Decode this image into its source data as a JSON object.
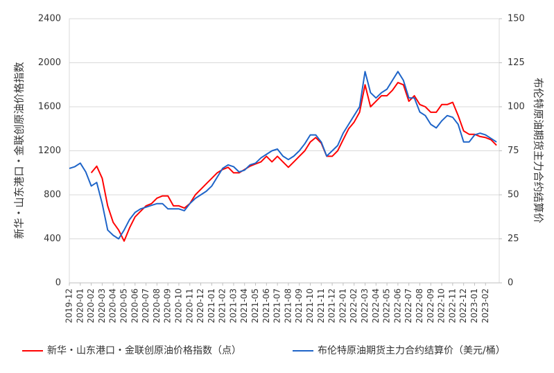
{
  "chart_data": {
    "type": "line",
    "y_label": "新华・山东港口・金联创原油价格指数",
    "y2_label": "布伦特原油期货主力合约结算价",
    "categories": [
      "2019-12",
      null,
      "2020-01",
      null,
      "2020-02",
      null,
      "2020-03",
      null,
      "2020-04",
      null,
      "2020-05",
      null,
      "2020-06",
      null,
      "2020-07",
      null,
      "2020-08",
      null,
      "2020-09",
      null,
      "2020-10",
      null,
      "2020-11",
      null,
      "2020-12",
      null,
      "2021-01",
      null,
      "2021-02",
      null,
      "2021-03",
      null,
      "2021-04",
      null,
      "2021-05",
      null,
      "2021-06",
      null,
      "2021-07",
      null,
      "2021-08",
      null,
      "2021-09",
      null,
      "2021-10",
      null,
      "2021-11",
      null,
      "2021-12",
      null,
      "2022-01",
      null,
      "2022-02",
      null,
      "2022-03",
      null,
      "2022-04",
      null,
      "2022-05",
      null,
      "2022-06",
      null,
      "2022-07",
      null,
      "2022-08",
      null,
      "2022-09",
      null,
      "2022-10",
      null,
      "2022-11",
      null,
      "2022-12",
      null,
      "2023-01",
      null,
      "2023-02",
      null,
      null
    ],
    "series": [
      {
        "name": "新华・山东港口・金联创原油价格指数（点）",
        "color": "#ff0000",
        "axis": "y",
        "values": [
          null,
          null,
          null,
          null,
          1000,
          1060,
          950,
          700,
          550,
          480,
          380,
          500,
          600,
          650,
          700,
          720,
          770,
          790,
          790,
          700,
          700,
          680,
          720,
          800,
          850,
          900,
          950,
          1000,
          1030,
          1050,
          1000,
          1000,
          1030,
          1060,
          1080,
          1100,
          1150,
          1100,
          1150,
          1100,
          1050,
          1100,
          1150,
          1200,
          1280,
          1320,
          1270,
          1150,
          1150,
          1200,
          1300,
          1400,
          1460,
          1550,
          1800,
          1600,
          1650,
          1700,
          1700,
          1750,
          1820,
          1800,
          1650,
          1700,
          1620,
          1600,
          1550,
          1550,
          1620,
          1620,
          1640,
          1520,
          1380,
          1350,
          1350,
          1330,
          1320,
          1300,
          1250
        ]
      },
      {
        "name": "布伦特原油期货主力合约结算价（美元/桶）",
        "color": "#1e64c8",
        "axis": "y2",
        "values": [
          65,
          66,
          68,
          63,
          55,
          57,
          45,
          30,
          27,
          25,
          30,
          36,
          40,
          42,
          43,
          44,
          45,
          45,
          42,
          42,
          42,
          41,
          45,
          48,
          50,
          52,
          55,
          60,
          65,
          67,
          66,
          63,
          64,
          67,
          68,
          71,
          73,
          75,
          76,
          72,
          70,
          72,
          75,
          79,
          84,
          84,
          80,
          72,
          75,
          78,
          85,
          90,
          95,
          100,
          120,
          108,
          105,
          108,
          110,
          115,
          120,
          115,
          105,
          105,
          97,
          95,
          90,
          88,
          92,
          95,
          94,
          90,
          80,
          80,
          84,
          85,
          84,
          82,
          80
        ]
      }
    ],
    "ylim": [
      0,
      2400
    ],
    "yticks": [
      0,
      400,
      800,
      1200,
      1600,
      2000,
      2400
    ],
    "y2lim": [
      0,
      150
    ],
    "y2ticks": [
      0,
      25,
      50,
      75,
      100,
      125,
      150
    ],
    "grid": true,
    "legend": "bottom"
  }
}
